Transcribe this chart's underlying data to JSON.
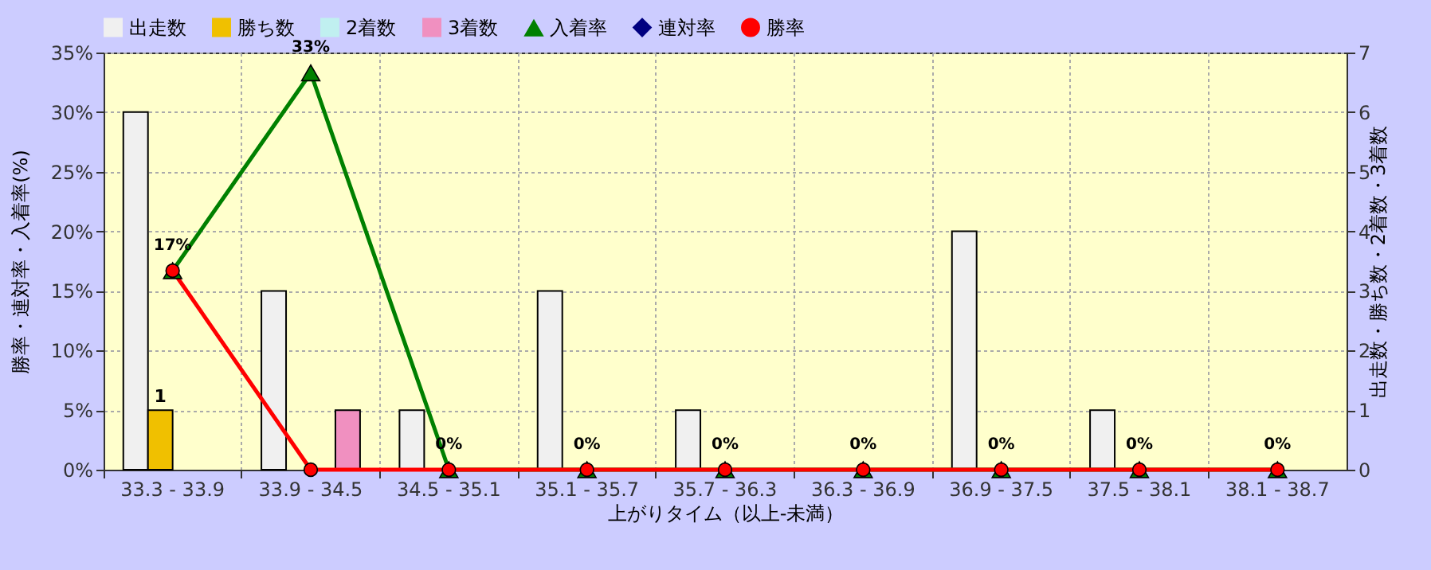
{
  "chart_data": {
    "type": "bar",
    "xlabel": "上がりタイム（以上-未満）",
    "ylabel": "勝率・連対率・入着率(%)",
    "y2label": "出走数・勝ち数・2着数・3着数",
    "categories": [
      "33.3 - 33.9",
      "33.9 - 34.5",
      "34.5 - 35.1",
      "35.1 - 35.7",
      "35.7 - 36.3",
      "36.3 - 36.9",
      "36.9 - 37.5",
      "37.5 - 38.1",
      "38.1 - 38.7"
    ],
    "series": [
      {
        "name": "出走数",
        "axis": "y2",
        "color": "#f0f0f0",
        "values": [
          6,
          3,
          1,
          3,
          1,
          0,
          4,
          1,
          0
        ]
      },
      {
        "name": "勝ち数",
        "axis": "y2",
        "color": "#f0c000",
        "values": [
          1,
          0,
          0,
          0,
          0,
          0,
          0,
          0,
          0
        ],
        "value_labels": [
          "1",
          null,
          null,
          null,
          null,
          null,
          null,
          null,
          null
        ]
      },
      {
        "name": "2着数",
        "axis": "y2",
        "color": "#c0f0f0",
        "values": [
          0,
          0,
          0,
          0,
          0,
          0,
          0,
          0,
          0
        ]
      },
      {
        "name": "3着数",
        "axis": "y2",
        "color": "#f090c0",
        "values": [
          0,
          1,
          0,
          0,
          0,
          0,
          0,
          0,
          0
        ]
      },
      {
        "name": "入着率",
        "type": "line",
        "color": "#008000",
        "marker": "triangle",
        "values": [
          16.7,
          33.3,
          0,
          0,
          0,
          0,
          0,
          0,
          0
        ],
        "value_labels": [
          "17%",
          "33%",
          "0%",
          "0%",
          "0%",
          "0%",
          "0%",
          "0%",
          "0%"
        ]
      },
      {
        "name": "連対率",
        "type": "line",
        "color": "#000080",
        "marker": "diamond",
        "values": [
          null,
          null,
          null,
          null,
          null,
          null,
          null,
          null,
          null
        ]
      },
      {
        "name": "勝率",
        "type": "line",
        "color": "#ff0000",
        "marker": "circle",
        "values": [
          16.7,
          0,
          0,
          0,
          0,
          0,
          0,
          0,
          0
        ]
      }
    ],
    "ylim": [
      0,
      35
    ],
    "yticks": [
      {
        "value": 0,
        "label": "0%"
      },
      {
        "value": 5,
        "label": "5%"
      },
      {
        "value": 10,
        "label": "10%"
      },
      {
        "value": 15,
        "label": "15%"
      },
      {
        "value": 20,
        "label": "20%"
      },
      {
        "value": 25,
        "label": "25%"
      },
      {
        "value": 30,
        "label": "30%"
      },
      {
        "value": 35,
        "label": "35%"
      }
    ],
    "y2lim": [
      0,
      7
    ],
    "y2ticks": [
      0,
      1,
      2,
      3,
      4,
      5,
      6,
      7
    ],
    "grid": true,
    "legend": "top"
  }
}
